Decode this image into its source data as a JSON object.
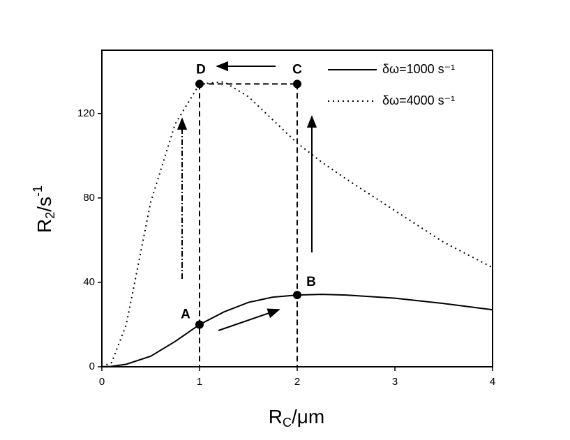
{
  "chart_data": {
    "type": "line",
    "x_label": {
      "main": "R",
      "sub": "C",
      "rest": "/μm"
    },
    "y_label": {
      "main": "R",
      "sub": "2",
      "rest": "/s",
      "sup": "-1"
    },
    "x": [
      0,
      0.1,
      0.25,
      0.5,
      0.75,
      1,
      1.25,
      1.5,
      1.75,
      2,
      2.25,
      2.5,
      3,
      3.5,
      4
    ],
    "series": [
      {
        "name": "δω=1000 s⁻¹",
        "color": "#000000",
        "style": "solid",
        "values": [
          0,
          0.2,
          1.2,
          5,
          12,
          20,
          26,
          30.5,
          33,
          34,
          34.3,
          34,
          32.5,
          30,
          27
        ]
      },
      {
        "name": "δω=4000 s⁻¹",
        "color": "#000000",
        "style": "dotted",
        "values": [
          0,
          2,
          20,
          78,
          115,
          134,
          135,
          128,
          117,
          106,
          97,
          89,
          74,
          59,
          47
        ]
      }
    ],
    "points": [
      {
        "label": "A",
        "x": 1,
        "y": 20
      },
      {
        "label": "B",
        "x": 2,
        "y": 34
      },
      {
        "label": "C",
        "x": 2,
        "y": 134
      },
      {
        "label": "D",
        "x": 1,
        "y": 134
      }
    ],
    "xlim": [
      0,
      4
    ],
    "xticks": [
      0,
      1,
      2,
      3,
      4
    ],
    "ylim": [
      0,
      150
    ],
    "yticks": [
      0,
      40,
      80,
      120
    ],
    "legend": "upper right"
  }
}
